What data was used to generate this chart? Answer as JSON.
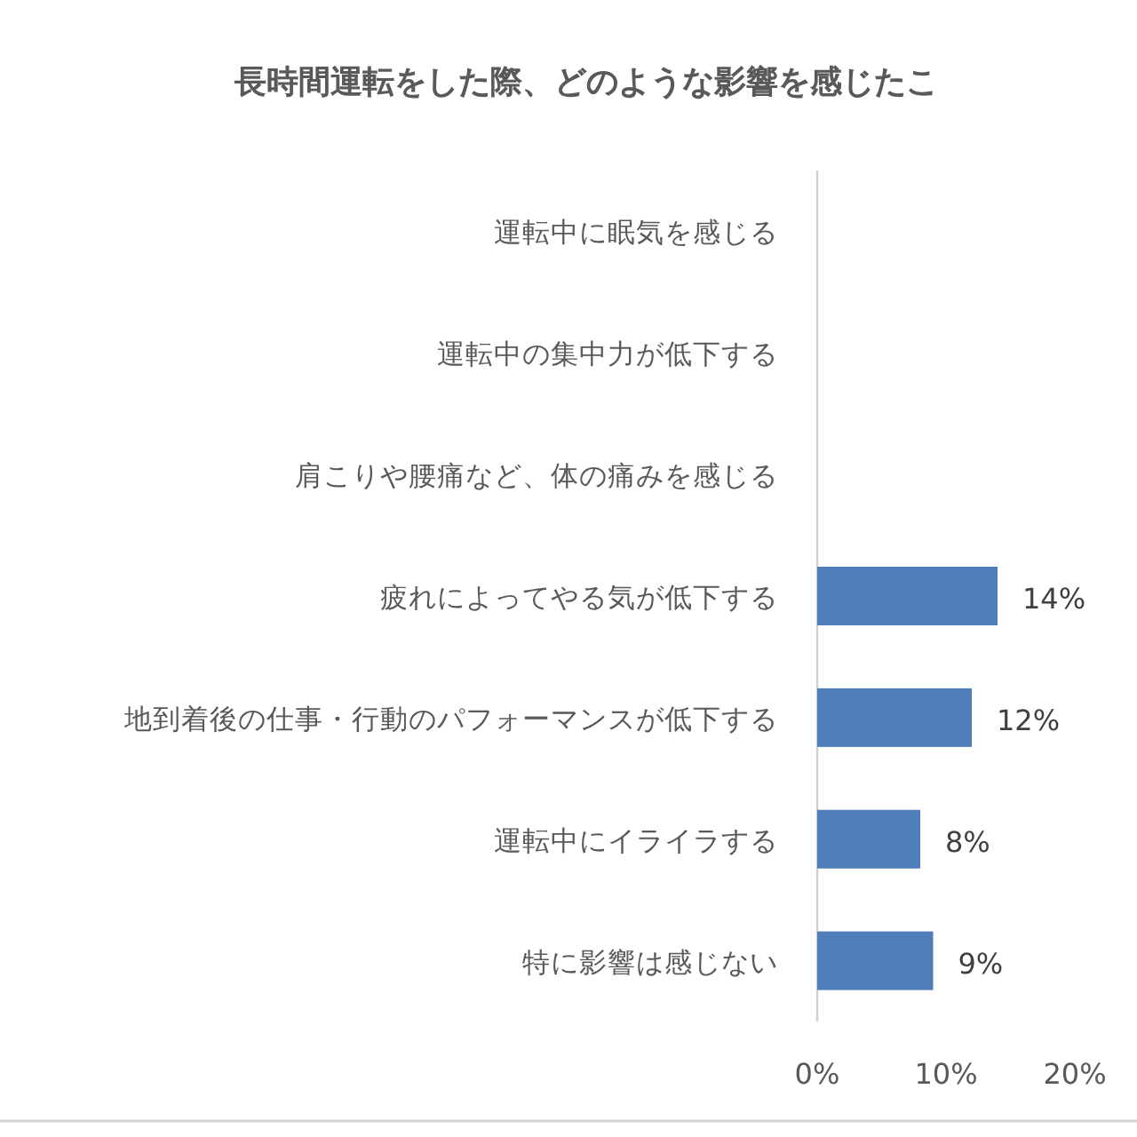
{
  "chart_data": {
    "type": "bar",
    "orientation": "horizontal",
    "title": "長時間運転をした際、どのような影響を感じたこ",
    "categories": [
      "運転中に眠気を感じる",
      "運転中の集中力が低下する",
      "肩こりや腰痛など、体の痛みを感じる",
      "疲れによってやる気が低下する",
      "地到着後の仕事・行動のパフォーマンスが低下する",
      "運転中にイライラする",
      "特に影響は感じない"
    ],
    "values": [
      null,
      null,
      null,
      14,
      12,
      8,
      9
    ],
    "value_labels": [
      null,
      null,
      null,
      "14%",
      "12%",
      "8%",
      "9%"
    ],
    "color": "#4f7db8",
    "xlim": [
      0,
      20
    ],
    "xticks": [
      {
        "value": 0,
        "label": "0%"
      },
      {
        "value": 10,
        "label": "10%"
      },
      {
        "value": 20,
        "label": "20%"
      }
    ],
    "grid": false
  }
}
